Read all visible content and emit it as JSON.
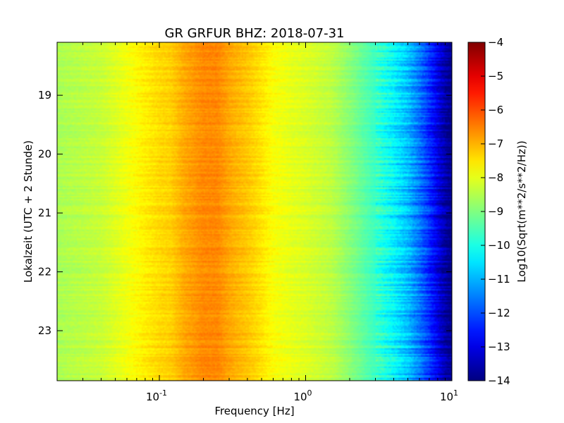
{
  "chart_data": {
    "type": "heatmap",
    "title": "GR GRFUR BHZ: 2018-07-31",
    "xlabel": "Frequency [Hz]",
    "ylabel": "Lokalzeit (UTC + 2 Stunde)",
    "x_scale": "log",
    "xlim": [
      0.02,
      10
    ],
    "x_ticks": [
      {
        "value": 0.1,
        "label": "10",
        "exp": "-1"
      },
      {
        "value": 1,
        "label": "10",
        "exp": "0"
      },
      {
        "value": 10,
        "label": "10",
        "exp": "1"
      }
    ],
    "y_inverted": true,
    "ylim": [
      18.1,
      23.85
    ],
    "y_ticks": [
      19,
      20,
      21,
      22,
      23
    ],
    "colorbar": {
      "label": "Log10(Sqrt(m**2/s**2/Hz))",
      "colormap": "jet",
      "range": [
        -14,
        -4
      ],
      "ticks": [
        -4,
        -5,
        -6,
        -7,
        -8,
        -9,
        -10,
        -11,
        -12,
        -13,
        -14
      ]
    },
    "spectrum_profile": {
      "frequency_hz": [
        0.02,
        0.04,
        0.06,
        0.08,
        0.1,
        0.12,
        0.15,
        0.2,
        0.25,
        0.3,
        0.4,
        0.5,
        0.6,
        0.8,
        1.0,
        1.5,
        2.0,
        3.0,
        4.0,
        5.0,
        6.0,
        7.0,
        8.0,
        9.0,
        10.0
      ],
      "level": [
        -8.6,
        -8.3,
        -7.9,
        -7.6,
        -7.4,
        -7.3,
        -6.9,
        -6.6,
        -6.6,
        -6.9,
        -7.2,
        -7.5,
        -7.8,
        -8.0,
        -8.1,
        -8.4,
        -8.9,
        -9.7,
        -10.3,
        -10.9,
        -11.6,
        -12.3,
        -13.0,
        -13.6,
        -14.0
      ]
    }
  }
}
